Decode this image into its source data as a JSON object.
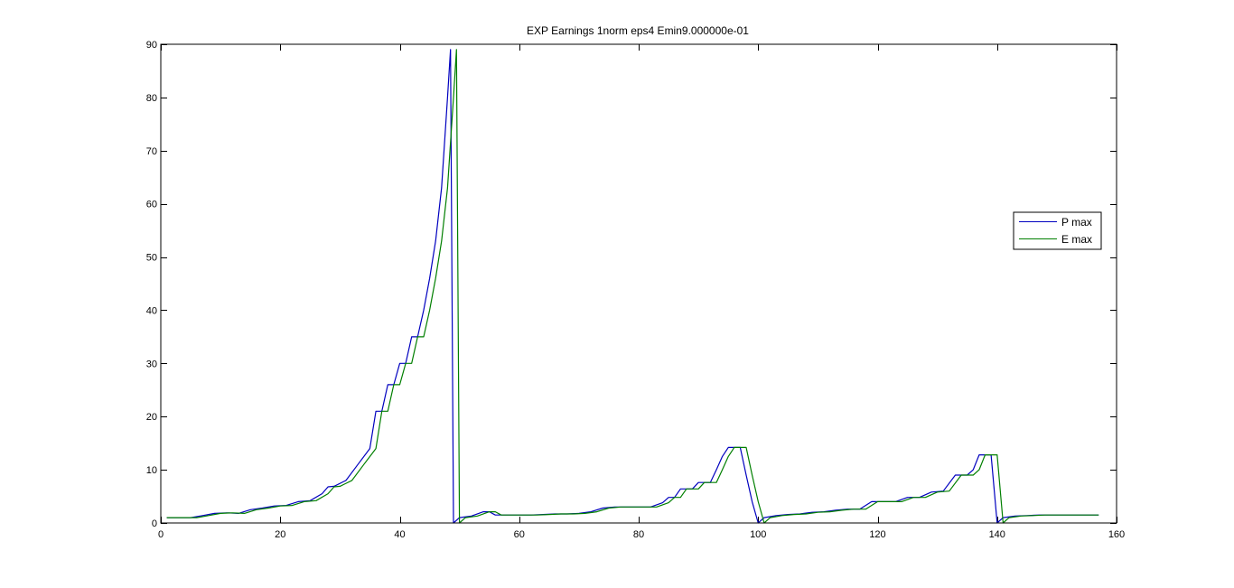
{
  "chart_data": {
    "type": "line",
    "title": "EXP Earnings 1norm eps4 Emin9.000000e-01",
    "xlabel": "",
    "ylabel": "",
    "xlim": [
      0,
      160
    ],
    "ylim": [
      0,
      90
    ],
    "x_ticks": [
      0,
      20,
      40,
      60,
      80,
      100,
      120,
      140,
      160
    ],
    "y_ticks": [
      0,
      10,
      20,
      30,
      40,
      50,
      60,
      70,
      80,
      90
    ],
    "grid": false,
    "legend_position": "center-right",
    "series": [
      {
        "name": "P max",
        "color": "#0000bf",
        "x": [
          1,
          5,
          7,
          9,
          11,
          13,
          15,
          17,
          19,
          21,
          23,
          25,
          27,
          28,
          29,
          31,
          33,
          35,
          36,
          37,
          38,
          39,
          40,
          41,
          42,
          43,
          44,
          45,
          46,
          47,
          48,
          48.5,
          49,
          50,
          52,
          54,
          55,
          56,
          57,
          58,
          60,
          62,
          64,
          66,
          68,
          70,
          72,
          74,
          76,
          78,
          80,
          82,
          84,
          85,
          86,
          87,
          88,
          89,
          90,
          91,
          92,
          93,
          94,
          95,
          96,
          97,
          98,
          99,
          100,
          101,
          103,
          105,
          107,
          109,
          111,
          113,
          115,
          117,
          119,
          121,
          123,
          125,
          127,
          129,
          131,
          133,
          134,
          135,
          136,
          137,
          138,
          139,
          140,
          141,
          143,
          145,
          147,
          149,
          151,
          153,
          155,
          157
        ],
        "y": [
          1,
          1,
          1.4,
          1.8,
          1.9,
          1.8,
          2.5,
          2.8,
          3.2,
          3.3,
          4,
          4.2,
          5.5,
          6.8,
          6.9,
          8,
          11,
          14,
          21,
          21,
          26,
          26,
          30,
          30,
          35,
          35,
          40,
          46,
          53,
          63,
          80,
          89,
          0,
          1,
          1.3,
          2.1,
          2.1,
          1.5,
          1.5,
          1.5,
          1.5,
          1.5,
          1.6,
          1.7,
          1.7,
          1.8,
          2.1,
          2.8,
          3,
          3,
          3,
          3,
          3.8,
          4.8,
          4.8,
          6.4,
          6.4,
          6.4,
          7.6,
          7.6,
          7.6,
          10,
          12.5,
          14.2,
          14.2,
          14.2,
          9,
          4,
          0,
          1,
          1.4,
          1.6,
          1.7,
          2,
          2.1,
          2.4,
          2.6,
          2.6,
          4,
          4,
          4,
          4.8,
          4.8,
          5.8,
          6,
          9,
          9,
          9,
          10,
          12.8,
          12.8,
          12.8,
          0,
          1,
          1.3,
          1.4,
          1.5,
          1.5,
          1.5,
          1.5,
          1.5,
          1.5
        ]
      },
      {
        "name": "E max",
        "color": "#007f00",
        "x": [
          1,
          6,
          8,
          10,
          12,
          14,
          16,
          18,
          20,
          22,
          24,
          26,
          28,
          29,
          30,
          32,
          34,
          36,
          37,
          38,
          39,
          40,
          41,
          42,
          43,
          44,
          45,
          46,
          47,
          48,
          49,
          49.5,
          50,
          51,
          53,
          55,
          56,
          57,
          58,
          59,
          61,
          63,
          65,
          67,
          69,
          71,
          73,
          75,
          77,
          79,
          81,
          83,
          85,
          86,
          87,
          88,
          89,
          90,
          91,
          92,
          93,
          94,
          95,
          96,
          97,
          98,
          99,
          100,
          101,
          102,
          104,
          106,
          108,
          110,
          112,
          114,
          116,
          118,
          120,
          122,
          124,
          126,
          128,
          130,
          132,
          134,
          135,
          136,
          137,
          138,
          139,
          140,
          141,
          142,
          144,
          146,
          148,
          150,
          152,
          154,
          156,
          157
        ],
        "y": [
          1,
          1,
          1.4,
          1.8,
          1.9,
          1.8,
          2.5,
          2.8,
          3.2,
          3.3,
          4,
          4.2,
          5.5,
          6.8,
          6.9,
          8,
          11,
          14,
          21,
          21,
          26,
          26,
          30,
          30,
          35,
          35,
          40,
          46,
          53,
          63,
          80,
          89,
          0,
          1,
          1.3,
          2.1,
          2.1,
          1.5,
          1.5,
          1.5,
          1.5,
          1.5,
          1.6,
          1.7,
          1.7,
          1.8,
          2.1,
          2.8,
          3,
          3,
          3,
          3,
          3.8,
          4.8,
          4.8,
          6.4,
          6.4,
          6.4,
          7.6,
          7.6,
          7.6,
          10,
          12.5,
          14.2,
          14.2,
          14.2,
          9,
          4,
          0,
          1,
          1.4,
          1.6,
          1.7,
          2,
          2.1,
          2.4,
          2.6,
          2.6,
          4,
          4,
          4,
          4.8,
          4.8,
          5.8,
          6,
          9,
          9,
          9,
          10,
          12.8,
          12.8,
          12.8,
          0,
          1,
          1.3,
          1.4,
          1.5,
          1.5,
          1.5,
          1.5,
          1.5,
          1.5
        ]
      }
    ]
  }
}
